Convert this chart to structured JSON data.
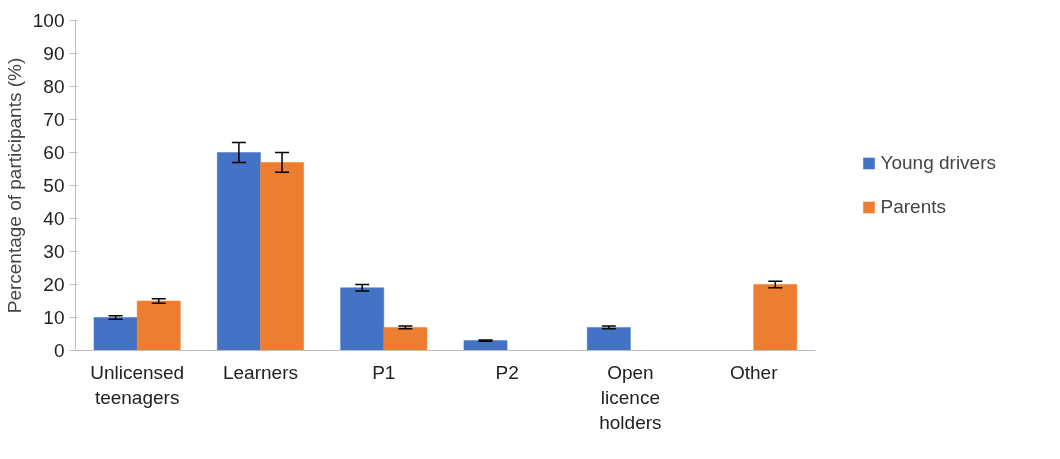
{
  "chart_data": {
    "type": "bar",
    "ylabel": "Percentage of participants (%)",
    "categories": [
      "Unlicensed teenagers",
      "Learners",
      "P1",
      "P2",
      "Open licence holders",
      "Other"
    ],
    "series": [
      {
        "name": "Young drivers",
        "color": "#4472c4",
        "values": [
          10,
          60,
          19,
          3,
          7,
          0
        ],
        "errors": [
          0.5,
          3,
          1,
          0.2,
          0.4,
          null
        ]
      },
      {
        "name": "Parents",
        "color": "#ed7d31",
        "values": [
          15,
          57,
          7,
          0,
          0,
          20
        ],
        "errors": [
          0.7,
          3,
          0.4,
          null,
          null,
          1
        ]
      }
    ],
    "ylim": [
      0,
      100
    ],
    "yticks": [
      0,
      10,
      20,
      30,
      40,
      50,
      60,
      70,
      80,
      90,
      100
    ],
    "grid": false,
    "legend": "right"
  }
}
